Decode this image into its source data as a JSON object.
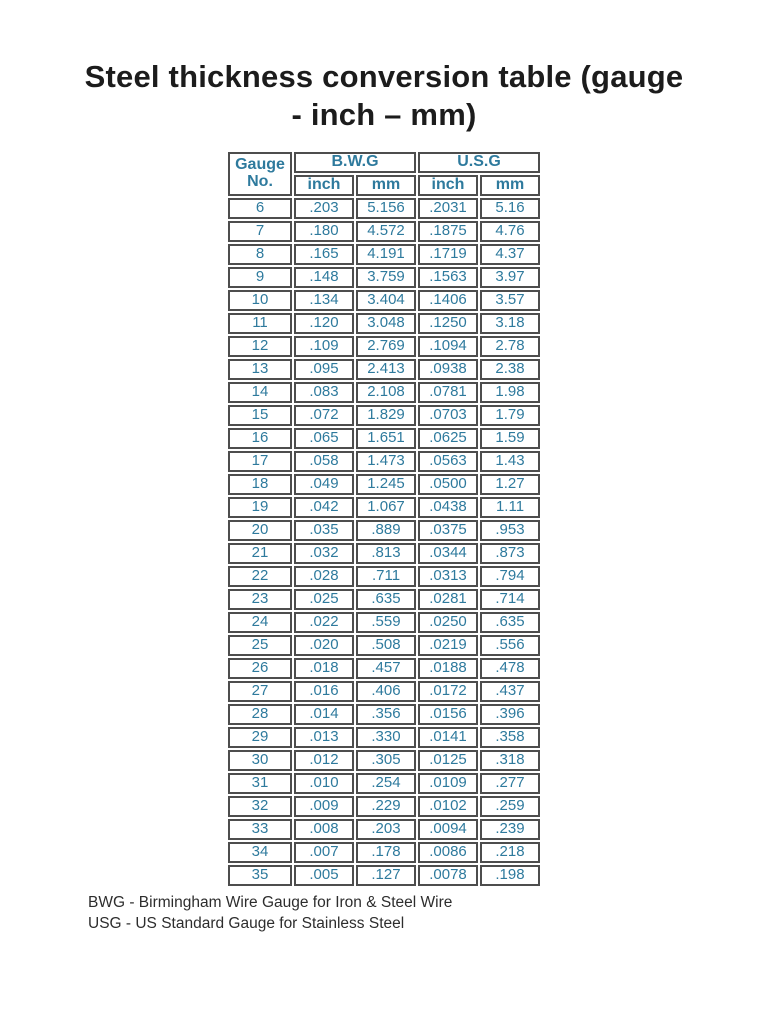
{
  "title_lines": [
    "Steel thickness conversion table (gauge",
    "- inch – mm)"
  ],
  "colors": {
    "accent_text": "#2E7A9D",
    "cell_shade": "#D9D9D9",
    "border": "#4D4D4D",
    "title_text": "#1C1C1C"
  },
  "table": {
    "header": {
      "gauge": "Gauge No.",
      "groups": [
        "B.W.G",
        "U.S.G"
      ],
      "subcolumns": [
        "inch",
        "mm",
        "inch",
        "mm"
      ]
    },
    "rows": [
      [
        "6",
        ".203",
        "5.156",
        ".2031",
        "5.16"
      ],
      [
        "7",
        ".180",
        "4.572",
        ".1875",
        "4.76"
      ],
      [
        "8",
        ".165",
        "4.191",
        ".1719",
        "4.37"
      ],
      [
        "9",
        ".148",
        "3.759",
        ".1563",
        "3.97"
      ],
      [
        "10",
        ".134",
        "3.404",
        ".1406",
        "3.57"
      ],
      [
        "11",
        ".120",
        "3.048",
        ".1250",
        "3.18"
      ],
      [
        "12",
        ".109",
        "2.769",
        ".1094",
        "2.78"
      ],
      [
        "13",
        ".095",
        "2.413",
        ".0938",
        "2.38"
      ],
      [
        "14",
        ".083",
        "2.108",
        ".0781",
        "1.98"
      ],
      [
        "15",
        ".072",
        "1.829",
        ".0703",
        "1.79"
      ],
      [
        "16",
        ".065",
        "1.651",
        ".0625",
        "1.59"
      ],
      [
        "17",
        ".058",
        "1.473",
        ".0563",
        "1.43"
      ],
      [
        "18",
        ".049",
        "1.245",
        ".0500",
        "1.27"
      ],
      [
        "19",
        ".042",
        "1.067",
        ".0438",
        "1.11"
      ],
      [
        "20",
        ".035",
        ".889",
        ".0375",
        ".953"
      ],
      [
        "21",
        ".032",
        ".813",
        ".0344",
        ".873"
      ],
      [
        "22",
        ".028",
        ".711",
        ".0313",
        ".794"
      ],
      [
        "23",
        ".025",
        ".635",
        ".0281",
        ".714"
      ],
      [
        "24",
        ".022",
        ".559",
        ".0250",
        ".635"
      ],
      [
        "25",
        ".020",
        ".508",
        ".0219",
        ".556"
      ],
      [
        "26",
        ".018",
        ".457",
        ".0188",
        ".478"
      ],
      [
        "27",
        ".016",
        ".406",
        ".0172",
        ".437"
      ],
      [
        "28",
        ".014",
        ".356",
        ".0156",
        ".396"
      ],
      [
        "29",
        ".013",
        ".330",
        ".0141",
        ".358"
      ],
      [
        "30",
        ".012",
        ".305",
        ".0125",
        ".318"
      ],
      [
        "31",
        ".010",
        ".254",
        ".0109",
        ".277"
      ],
      [
        "32",
        ".009",
        ".229",
        ".0102",
        ".259"
      ],
      [
        "33",
        ".008",
        ".203",
        ".0094",
        ".239"
      ],
      [
        "34",
        ".007",
        ".178",
        ".0086",
        ".218"
      ],
      [
        "35",
        ".005",
        ".127",
        ".0078",
        ".198"
      ]
    ]
  },
  "footnotes": [
    "BWG - Birmingham Wire Gauge for Iron & Steel Wire",
    "USG -  US Standard Gauge for Stainless Steel"
  ]
}
